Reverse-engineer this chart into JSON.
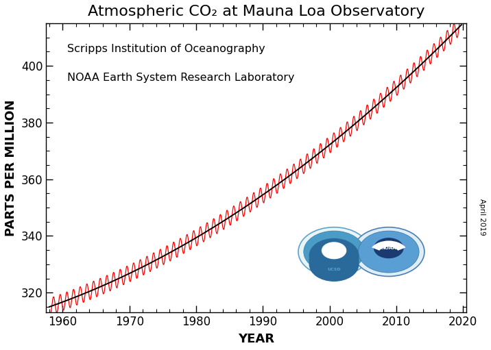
{
  "title": "Atmospheric CO₂ at Mauna Loa Observatory",
  "xlabel": "YEAR",
  "ylabel": "PARTS PER MILLION",
  "annotation_line1": "Scripps Institution of Oceanography",
  "annotation_line2": "NOAA Earth System Research Laboratory",
  "side_label": "April 2019",
  "xlim": [
    1957.5,
    2020.5
  ],
  "ylim": [
    313,
    415
  ],
  "xticks": [
    1960,
    1970,
    1980,
    1990,
    2000,
    2010,
    2020
  ],
  "yticks": [
    320,
    340,
    360,
    380,
    400
  ],
  "background_color": "#ffffff",
  "plot_bg_color": "#ffffff",
  "red_line_color": "#ff0000",
  "black_line_color": "#000000",
  "tick_label_fontsize": 12,
  "axis_label_fontsize": 13,
  "title_fontsize": 16,
  "annotation_fontsize": 11.5
}
